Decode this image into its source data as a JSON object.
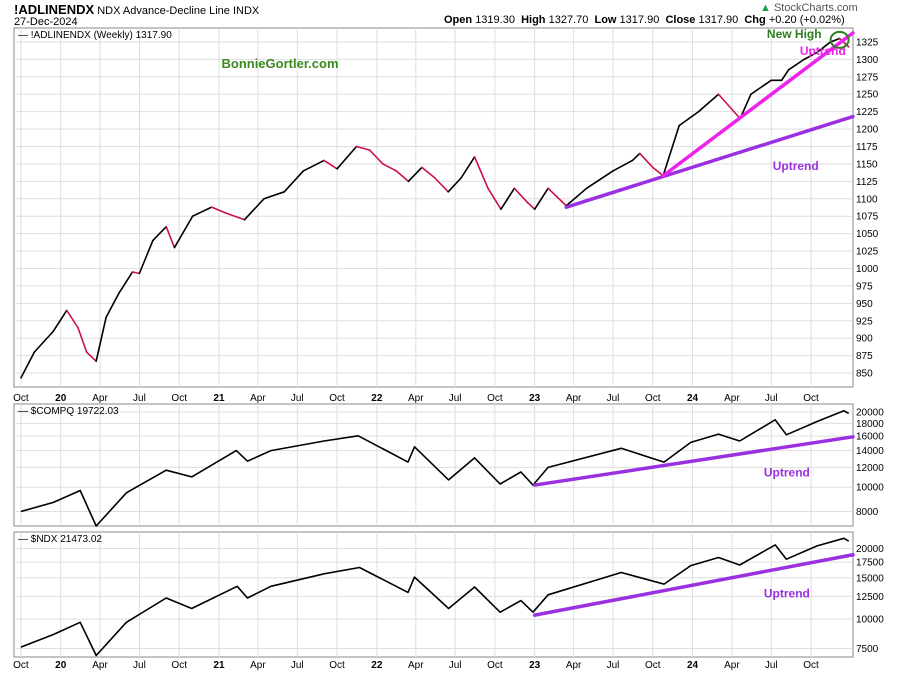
{
  "header": {
    "symbol": "!ADLINENDX",
    "description": "NDX Advance-Decline Line",
    "exchange": "INDX",
    "date": "27-Dec-2024",
    "open_label": "Open",
    "open": "1319.30",
    "high_label": "High",
    "high": "1327.70",
    "low_label": "Low",
    "low": "1317.90",
    "close_label": "Close",
    "close": "1317.90",
    "chg_label": "Chg",
    "chg": "+0.20 (+0.02%)",
    "brand": "StockCharts.com",
    "brand_icon": "up-triangle-icon"
  },
  "chart_data": [
    {
      "type": "line",
      "label": "!ADLINENDX (Weekly) 1317.90",
      "watermark": "BonnieGortler.com",
      "scale": "linear",
      "ylim": [
        830,
        1345
      ],
      "yticks": [
        850,
        875,
        900,
        925,
        950,
        975,
        1000,
        1025,
        1050,
        1075,
        1100,
        1125,
        1150,
        1175,
        1200,
        1225,
        1250,
        1275,
        1300,
        1325
      ],
      "series": [
        {
          "up_color": "#000000",
          "down_color": "#cc1144",
          "points": [
            [
              "2019-10-01",
              843
            ],
            [
              "2019-11-01",
              880
            ],
            [
              "2019-12-15",
              910
            ],
            [
              "2020-01-15",
              940
            ],
            [
              "2020-02-10",
              915
            ],
            [
              "2020-03-01",
              880
            ],
            [
              "2020-03-23",
              867
            ],
            [
              "2020-04-15",
              930
            ],
            [
              "2020-05-15",
              965
            ],
            [
              "2020-06-15",
              995
            ],
            [
              "2020-07-01",
              993
            ],
            [
              "2020-08-01",
              1040
            ],
            [
              "2020-09-01",
              1060
            ],
            [
              "2020-09-20",
              1030
            ],
            [
              "2020-11-01",
              1075
            ],
            [
              "2020-12-15",
              1088
            ],
            [
              "2021-01-15",
              1080
            ],
            [
              "2021-03-01",
              1070
            ],
            [
              "2021-04-15",
              1100
            ],
            [
              "2021-06-01",
              1110
            ],
            [
              "2021-07-15",
              1140
            ],
            [
              "2021-09-01",
              1155
            ],
            [
              "2021-10-01",
              1143
            ],
            [
              "2021-11-15",
              1175
            ],
            [
              "2021-12-15",
              1170
            ],
            [
              "2022-01-15",
              1150
            ],
            [
              "2022-02-15",
              1140
            ],
            [
              "2022-03-15",
              1125
            ],
            [
              "2022-04-15",
              1145
            ],
            [
              "2022-05-15",
              1130
            ],
            [
              "2022-06-15",
              1110
            ],
            [
              "2022-07-15",
              1130
            ],
            [
              "2022-08-15",
              1160
            ],
            [
              "2022-09-15",
              1115
            ],
            [
              "2022-10-15",
              1085
            ],
            [
              "2022-11-15",
              1115
            ],
            [
              "2022-12-15",
              1095
            ],
            [
              "2023-01-01",
              1085
            ],
            [
              "2023-02-01",
              1115
            ],
            [
              "2023-03-15",
              1090
            ],
            [
              "2023-05-01",
              1115
            ],
            [
              "2023-07-01",
              1140
            ],
            [
              "2023-08-15",
              1155
            ],
            [
              "2023-09-01",
              1165
            ],
            [
              "2023-10-01",
              1145
            ],
            [
              "2023-10-25",
              1133
            ],
            [
              "2023-12-01",
              1205
            ],
            [
              "2024-01-15",
              1225
            ],
            [
              "2024-03-01",
              1250
            ],
            [
              "2024-04-20",
              1215
            ],
            [
              "2024-05-15",
              1250
            ],
            [
              "2024-07-01",
              1270
            ],
            [
              "2024-07-25",
              1270
            ],
            [
              "2024-08-10",
              1285
            ],
            [
              "2024-09-15",
              1300
            ],
            [
              "2024-10-15",
              1310
            ],
            [
              "2024-11-15",
              1325
            ],
            [
              "2024-12-06",
              1330
            ],
            [
              "2024-12-27",
              1317.9
            ]
          ]
        }
      ],
      "trendlines": [
        {
          "label": "Uptrend",
          "color": "#9b30e0",
          "from": [
            "2023-03-15",
            1088
          ],
          "to": [
            "2025-01-06",
            1218
          ]
        },
        {
          "label": "Uptrend",
          "color": "#ee22ee",
          "from": [
            "2023-10-25",
            1133
          ],
          "to": [
            "2025-01-06",
            1338
          ]
        }
      ],
      "annotations": [
        {
          "text": "New High",
          "color": "#2e7d1e",
          "at": [
            "2024-12-06",
            1328
          ]
        }
      ],
      "x_ticks": [
        "Oct",
        "20",
        "Apr",
        "Jul",
        "Oct",
        "21",
        "Apr",
        "Jul",
        "Oct",
        "22",
        "Apr",
        "Jul",
        "Oct",
        "23",
        "Apr",
        "Jul",
        "Oct",
        "24",
        "Apr",
        "Jul",
        "Oct"
      ]
    },
    {
      "type": "line",
      "label": "$COMPQ 19722.03",
      "scale": "log",
      "ylim": [
        7000,
        21500
      ],
      "yticks": [
        8000,
        10000,
        12000,
        14000,
        16000,
        18000,
        20000
      ],
      "series": [
        {
          "color": "#000000",
          "points": [
            [
              "2019-10-01",
              8000
            ],
            [
              "2019-12-15",
              8700
            ],
            [
              "2020-02-15",
              9700
            ],
            [
              "2020-03-23",
              7000
            ],
            [
              "2020-06-01",
              9500
            ],
            [
              "2020-09-01",
              11700
            ],
            [
              "2020-10-30",
              11000
            ],
            [
              "2021-02-10",
              14000
            ],
            [
              "2021-03-08",
              12700
            ],
            [
              "2021-05-01",
              14000
            ],
            [
              "2021-09-01",
              15300
            ],
            [
              "2021-11-19",
              16050
            ],
            [
              "2022-03-14",
              12600
            ],
            [
              "2022-03-29",
              14500
            ],
            [
              "2022-06-16",
              10700
            ],
            [
              "2022-08-15",
              13100
            ],
            [
              "2022-10-13",
              10300
            ],
            [
              "2022-11-30",
              11500
            ],
            [
              "2022-12-28",
              10200
            ],
            [
              "2023-02-01",
              12000
            ],
            [
              "2023-07-20",
              14300
            ],
            [
              "2023-10-27",
              12600
            ],
            [
              "2023-12-28",
              15100
            ],
            [
              "2024-03-01",
              16300
            ],
            [
              "2024-04-19",
              15300
            ],
            [
              "2024-07-10",
              18600
            ],
            [
              "2024-08-05",
              16200
            ],
            [
              "2024-10-15",
              18300
            ],
            [
              "2024-12-16",
              20200
            ],
            [
              "2024-12-27",
              19722
            ]
          ]
        }
      ],
      "trendlines": [
        {
          "label": "Uptrend",
          "color": "#9b30e0",
          "from": [
            "2023-01-01",
            10200
          ],
          "to": [
            "2025-01-06",
            15900
          ]
        }
      ]
    },
    {
      "type": "line",
      "label": "$NDX 21473.02",
      "scale": "log",
      "ylim": [
        6900,
        23500
      ],
      "yticks": [
        7500,
        10000,
        12500,
        15000,
        17500,
        20000
      ],
      "series": [
        {
          "color": "#000000",
          "points": [
            [
              "2019-10-01",
              7600
            ],
            [
              "2019-12-15",
              8600
            ],
            [
              "2020-02-15",
              9700
            ],
            [
              "2020-03-23",
              7000
            ],
            [
              "2020-06-01",
              9700
            ],
            [
              "2020-09-01",
              12300
            ],
            [
              "2020-10-30",
              11100
            ],
            [
              "2021-02-12",
              13800
            ],
            [
              "2021-03-08",
              12300
            ],
            [
              "2021-05-01",
              13800
            ],
            [
              "2021-09-01",
              15600
            ],
            [
              "2021-11-22",
              16600
            ],
            [
              "2022-03-14",
              13000
            ],
            [
              "2022-03-29",
              15100
            ],
            [
              "2022-06-16",
              11100
            ],
            [
              "2022-08-15",
              13700
            ],
            [
              "2022-10-13",
              10700
            ],
            [
              "2022-11-30",
              12000
            ],
            [
              "2022-12-28",
              10700
            ],
            [
              "2023-02-01",
              12700
            ],
            [
              "2023-07-20",
              15800
            ],
            [
              "2023-10-27",
              14100
            ],
            [
              "2023-12-28",
              16900
            ],
            [
              "2024-03-01",
              18300
            ],
            [
              "2024-04-19",
              17000
            ],
            [
              "2024-07-10",
              20700
            ],
            [
              "2024-08-05",
              18000
            ],
            [
              "2024-10-15",
              20500
            ],
            [
              "2024-12-16",
              22100
            ],
            [
              "2024-12-27",
              21473
            ]
          ]
        }
      ],
      "trendlines": [
        {
          "label": "Uptrend",
          "color": "#9b30e0",
          "from": [
            "2023-01-01",
            10400
          ],
          "to": [
            "2025-01-06",
            18800
          ]
        }
      ],
      "x_ticks": [
        "Oct",
        "20",
        "Apr",
        "Jul",
        "Oct",
        "21",
        "Apr",
        "Jul",
        "Oct",
        "22",
        "Apr",
        "Jul",
        "Oct",
        "23",
        "Apr",
        "Jul",
        "Oct",
        "24",
        "Apr",
        "Jul",
        "Oct"
      ]
    }
  ]
}
